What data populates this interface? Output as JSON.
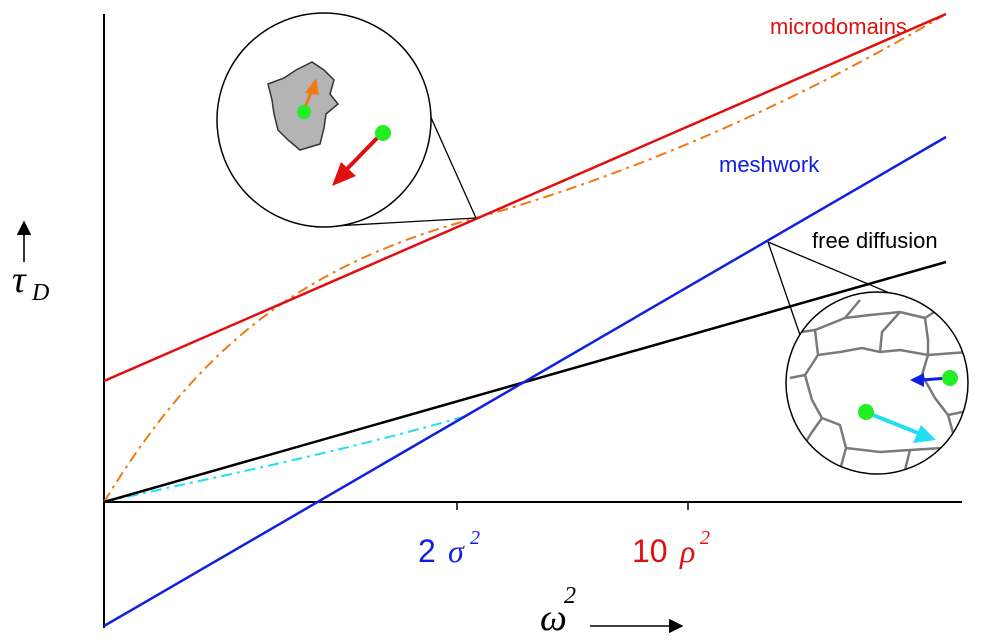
{
  "labels": {
    "microdomains": "microdomains",
    "meshwork": "meshwork",
    "free_diffusion": "free diffusion"
  },
  "axes": {
    "y_symbol": "τ",
    "y_subscript": "D",
    "x_symbol": "ω",
    "x_superscript": "2"
  },
  "ticks": {
    "sigma": {
      "coef": "2",
      "symbol": "σ",
      "power": "2"
    },
    "rho": {
      "coef": "10",
      "symbol": "ρ",
      "power": "2"
    }
  },
  "colors": {
    "microdomains": "#e01010",
    "meshwork": "#1020e0",
    "free_diffusion": "#000000",
    "micro_curve": "#f07a10",
    "mesh_curve": "#20e0f0",
    "particle": "#22ee22",
    "domain_fill": "#b4b4b4",
    "mesh_grid": "#7a7a7a"
  }
}
